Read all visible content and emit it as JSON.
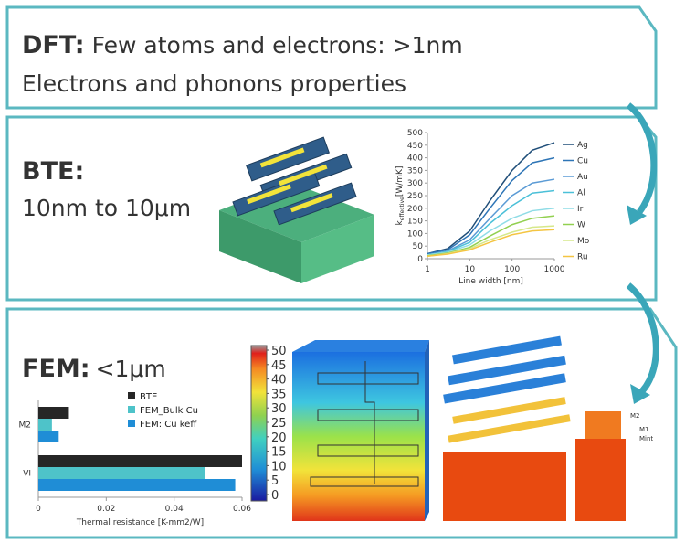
{
  "panels": [
    {
      "heading": "DFT:",
      "text": "Few atoms and electrons: >1nm",
      "text2": "Electrons and phonons properties"
    },
    {
      "heading": "BTE:",
      "text": "10nm to 10μm"
    },
    {
      "heading": "FEM:",
      "text": "<1μm"
    }
  ],
  "chart_data": [
    {
      "type": "line",
      "xscale": "log",
      "x": [
        1,
        3,
        10,
        30,
        100,
        300,
        1000
      ],
      "xlim": [
        1,
        1000
      ],
      "xticks": [
        1,
        10,
        100,
        1000
      ],
      "xlabel": "Line width [nm]",
      "ylabel": {
        "main": "k",
        "sub": "effective",
        "unit": "[W/mK]"
      },
      "ylim": [
        0,
        500
      ],
      "yticks": [
        0,
        50,
        100,
        150,
        200,
        250,
        300,
        350,
        400,
        450,
        500
      ],
      "series": [
        {
          "name": "Ag",
          "color": "#1f4e79",
          "values": [
            20,
            40,
            110,
            230,
            350,
            430,
            460
          ]
        },
        {
          "name": "Cu",
          "color": "#2e75b6",
          "values": [
            20,
            35,
            95,
            200,
            310,
            380,
            400
          ]
        },
        {
          "name": "Au",
          "color": "#5b9bd5",
          "values": [
            15,
            30,
            75,
            160,
            250,
            300,
            315
          ]
        },
        {
          "name": "Al",
          "color": "#4bc0d8",
          "values": [
            15,
            28,
            65,
            140,
            210,
            260,
            270
          ]
        },
        {
          "name": "Ir",
          "color": "#8fdce6",
          "values": [
            15,
            25,
            55,
            110,
            160,
            190,
            200
          ]
        },
        {
          "name": "W",
          "color": "#92d050",
          "values": [
            12,
            22,
            45,
            90,
            135,
            160,
            170
          ]
        },
        {
          "name": "Mo",
          "color": "#d6e88a",
          "values": [
            10,
            20,
            40,
            75,
            105,
            125,
            130
          ]
        },
        {
          "name": "Ru",
          "color": "#f4c542",
          "values": [
            10,
            18,
            35,
            65,
            95,
            110,
            115
          ]
        }
      ]
    },
    {
      "type": "hbar",
      "categories": [
        "M2",
        "VI"
      ],
      "xlim": [
        0,
        0.06
      ],
      "xticks": [
        0,
        0.02,
        0.04,
        0.06
      ],
      "xlabel": "Thermal resistance [K-mm2/W]",
      "series": [
        {
          "name": "BTE",
          "color": "#262626",
          "values": [
            0.009,
            0.06
          ]
        },
        {
          "name": "FEM_Bulk Cu",
          "color": "#4ec3c9",
          "values": [
            0.004,
            0.049
          ]
        },
        {
          "name": "FEM: Cu keff",
          "color": "#1f8dd6",
          "values": [
            0.006,
            0.058
          ]
        }
      ]
    }
  ],
  "colorbar": {
    "ticks": [
      0,
      5,
      10,
      15,
      20,
      25,
      30,
      35,
      40,
      45,
      50
    ]
  },
  "labels": {
    "m2": "M2",
    "m1": "M1",
    "mint": "Mint"
  }
}
